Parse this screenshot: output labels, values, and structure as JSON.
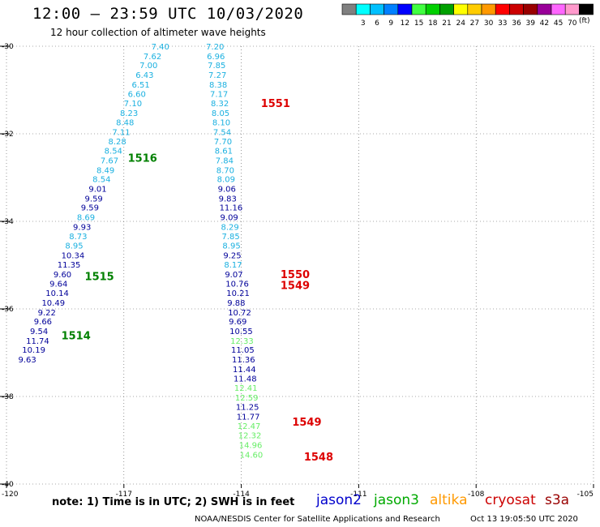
{
  "header": {
    "title": "12:00 – 23:59 UTC 10/03/2020",
    "subtitle": "12 hour collection of altimeter wave heights"
  },
  "scale": {
    "unit": "(ft)",
    "swatches": [
      {
        "label": "",
        "color": "#808080"
      },
      {
        "label": "3",
        "color": "#00ffff"
      },
      {
        "label": "6",
        "color": "#00c0ff"
      },
      {
        "label": "9",
        "color": "#0080ff"
      },
      {
        "label": "12",
        "color": "#0000ff"
      },
      {
        "label": "15",
        "color": "#40ff40"
      },
      {
        "label": "18",
        "color": "#00d000"
      },
      {
        "label": "21",
        "color": "#00a000"
      },
      {
        "label": "24",
        "color": "#ffff00"
      },
      {
        "label": "27",
        "color": "#ffcc00"
      },
      {
        "label": "30",
        "color": "#ff9900"
      },
      {
        "label": "33",
        "color": "#ff0000"
      },
      {
        "label": "36",
        "color": "#cc0000"
      },
      {
        "label": "39",
        "color": "#990000"
      },
      {
        "label": "42",
        "color": "#990099"
      },
      {
        "label": "45",
        "color": "#ff66ff"
      },
      {
        "label": "70",
        "color": "#ff99cc"
      },
      {
        "label": "",
        "color": "#000000"
      }
    ]
  },
  "map": {
    "lon_range": [
      -120,
      -105
    ],
    "lat_range": [
      -40,
      -30
    ],
    "x_ticks": [
      {
        "value": -120,
        "label": "-120"
      },
      {
        "value": -117,
        "label": "-117"
      },
      {
        "value": -114,
        "label": "-114"
      },
      {
        "value": -111,
        "label": "-111"
      },
      {
        "value": -108,
        "label": "-108"
      },
      {
        "value": -105,
        "label": "-105"
      }
    ],
    "y_ticks": [
      {
        "value": -30,
        "label": "-30"
      },
      {
        "value": -32,
        "label": "-32"
      },
      {
        "value": -34,
        "label": "-34"
      },
      {
        "value": -36,
        "label": "-36"
      },
      {
        "value": -38,
        "label": "-38"
      },
      {
        "value": -40,
        "label": "-40"
      }
    ],
    "grid": "dotted"
  },
  "colors": {
    "light": "#1ab0e0",
    "dark": "#000099",
    "pale": "#66ee66",
    "green": "#008000",
    "red": "#dd0000",
    "blue": "#0000cc",
    "lime": "#00aa00",
    "orange": "#ff9900",
    "crimson": "#cc0000",
    "maroon": "#990000"
  },
  "tracks": [
    {
      "name": "jason3-track",
      "labels": [
        {
          "lon": -116.3,
          "lat": -30.0,
          "text": "7.40",
          "c": "light"
        },
        {
          "lon": -116.5,
          "lat": -30.22,
          "text": "7.62",
          "c": "light"
        },
        {
          "lon": -116.6,
          "lat": -30.43,
          "text": "7.00",
          "c": "light"
        },
        {
          "lon": -116.7,
          "lat": -30.65,
          "text": "6.43",
          "c": "light"
        },
        {
          "lon": -116.8,
          "lat": -30.87,
          "text": "6.51",
          "c": "light"
        },
        {
          "lon": -116.9,
          "lat": -31.08,
          "text": "6.60",
          "c": "light"
        },
        {
          "lon": -117.0,
          "lat": -31.3,
          "text": "7.10",
          "c": "light"
        },
        {
          "lon": -117.1,
          "lat": -31.52,
          "text": "8.23",
          "c": "light"
        },
        {
          "lon": -117.2,
          "lat": -31.73,
          "text": "8.48",
          "c": "light"
        },
        {
          "lon": -117.3,
          "lat": -31.95,
          "text": "7.11",
          "c": "light"
        },
        {
          "lon": -117.4,
          "lat": -32.17,
          "text": "8.28",
          "c": "light"
        },
        {
          "lon": -117.5,
          "lat": -32.38,
          "text": "8.54",
          "c": "light"
        },
        {
          "lon": -117.6,
          "lat": -32.6,
          "text": "7.67",
          "c": "light"
        },
        {
          "lon": -117.7,
          "lat": -32.82,
          "text": "8.49",
          "c": "light"
        },
        {
          "lon": -117.8,
          "lat": -33.03,
          "text": "8.54",
          "c": "light"
        },
        {
          "lon": -117.9,
          "lat": -33.25,
          "text": "9.01",
          "c": "dark"
        },
        {
          "lon": -118.0,
          "lat": -33.47,
          "text": "9.59",
          "c": "dark"
        },
        {
          "lon": -118.1,
          "lat": -33.68,
          "text": "9.59",
          "c": "dark"
        },
        {
          "lon": -118.2,
          "lat": -33.9,
          "text": "8.69",
          "c": "light"
        },
        {
          "lon": -118.3,
          "lat": -34.12,
          "text": "9.93",
          "c": "dark"
        },
        {
          "lon": -118.4,
          "lat": -34.33,
          "text": "8.73",
          "c": "light"
        },
        {
          "lon": -118.5,
          "lat": -34.55,
          "text": "8.95",
          "c": "light"
        },
        {
          "lon": -118.6,
          "lat": -34.77,
          "text": "10.34",
          "c": "dark"
        },
        {
          "lon": -118.7,
          "lat": -34.98,
          "text": "11.35",
          "c": "dark"
        },
        {
          "lon": -118.8,
          "lat": -35.2,
          "text": "9.60",
          "c": "dark"
        },
        {
          "lon": -118.9,
          "lat": -35.42,
          "text": "9.64",
          "c": "dark"
        },
        {
          "lon": -119.0,
          "lat": -35.63,
          "text": "10.14",
          "c": "dark"
        },
        {
          "lon": -119.1,
          "lat": -35.85,
          "text": "10.49",
          "c": "dark"
        },
        {
          "lon": -119.2,
          "lat": -36.07,
          "text": "9.22",
          "c": "dark"
        },
        {
          "lon": -119.3,
          "lat": -36.28,
          "text": "9.66",
          "c": "dark"
        },
        {
          "lon": -119.4,
          "lat": -36.5,
          "text": "9.54",
          "c": "dark"
        },
        {
          "lon": -119.5,
          "lat": -36.72,
          "text": "11.74",
          "c": "dark"
        },
        {
          "lon": -119.6,
          "lat": -36.93,
          "text": "10.19",
          "c": "dark"
        },
        {
          "lon": -119.7,
          "lat": -37.15,
          "text": "9.63",
          "c": "dark"
        }
      ]
    },
    {
      "name": "jason2-track",
      "labels": [
        {
          "lon": -114.9,
          "lat": -30.0,
          "text": "7.20",
          "c": "light"
        },
        {
          "lon": -114.88,
          "lat": -30.22,
          "text": "6.96",
          "c": "light"
        },
        {
          "lon": -114.86,
          "lat": -30.43,
          "text": "7.85",
          "c": "light"
        },
        {
          "lon": -114.84,
          "lat": -30.65,
          "text": "7.27",
          "c": "light"
        },
        {
          "lon": -114.82,
          "lat": -30.87,
          "text": "8.38",
          "c": "light"
        },
        {
          "lon": -114.8,
          "lat": -31.08,
          "text": "7.17",
          "c": "light"
        },
        {
          "lon": -114.78,
          "lat": -31.3,
          "text": "8.32",
          "c": "light"
        },
        {
          "lon": -114.76,
          "lat": -31.52,
          "text": "8.05",
          "c": "light"
        },
        {
          "lon": -114.74,
          "lat": -31.73,
          "text": "8.10",
          "c": "light"
        },
        {
          "lon": -114.72,
          "lat": -31.95,
          "text": "7.54",
          "c": "light"
        },
        {
          "lon": -114.7,
          "lat": -32.17,
          "text": "7.70",
          "c": "light"
        },
        {
          "lon": -114.68,
          "lat": -32.38,
          "text": "8.61",
          "c": "light"
        },
        {
          "lon": -114.66,
          "lat": -32.6,
          "text": "7.84",
          "c": "light"
        },
        {
          "lon": -114.64,
          "lat": -32.82,
          "text": "8.70",
          "c": "light"
        },
        {
          "lon": -114.62,
          "lat": -33.03,
          "text": "8.09",
          "c": "light"
        },
        {
          "lon": -114.6,
          "lat": -33.25,
          "text": "9.06",
          "c": "dark"
        },
        {
          "lon": -114.58,
          "lat": -33.47,
          "text": "9.83",
          "c": "dark"
        },
        {
          "lon": -114.56,
          "lat": -33.68,
          "text": "11.16",
          "c": "dark"
        },
        {
          "lon": -114.54,
          "lat": -33.9,
          "text": "9.09",
          "c": "dark"
        },
        {
          "lon": -114.52,
          "lat": -34.12,
          "text": "8.29",
          "c": "light"
        },
        {
          "lon": -114.5,
          "lat": -34.33,
          "text": "7.85",
          "c": "light"
        },
        {
          "lon": -114.48,
          "lat": -34.55,
          "text": "8.95",
          "c": "light"
        },
        {
          "lon": -114.46,
          "lat": -34.77,
          "text": "9.25",
          "c": "dark"
        },
        {
          "lon": -114.44,
          "lat": -34.98,
          "text": "8.17",
          "c": "light"
        },
        {
          "lon": -114.42,
          "lat": -35.2,
          "text": "9.07",
          "c": "dark"
        },
        {
          "lon": -114.4,
          "lat": -35.42,
          "text": "10.76",
          "c": "dark"
        },
        {
          "lon": -114.38,
          "lat": -35.63,
          "text": "10.21",
          "c": "dark"
        },
        {
          "lon": -114.36,
          "lat": -35.85,
          "text": "9.88",
          "c": "dark"
        },
        {
          "lon": -114.34,
          "lat": -36.07,
          "text": "10.72",
          "c": "dark"
        },
        {
          "lon": -114.32,
          "lat": -36.28,
          "text": "9.69",
          "c": "dark"
        },
        {
          "lon": -114.3,
          "lat": -36.5,
          "text": "10.55",
          "c": "dark"
        },
        {
          "lon": -114.28,
          "lat": -36.72,
          "text": "12.33",
          "c": "pale"
        },
        {
          "lon": -114.26,
          "lat": -36.93,
          "text": "11.05",
          "c": "dark"
        },
        {
          "lon": -114.24,
          "lat": -37.15,
          "text": "11.36",
          "c": "dark"
        },
        {
          "lon": -114.22,
          "lat": -37.37,
          "text": "11.44",
          "c": "dark"
        },
        {
          "lon": -114.2,
          "lat": -37.58,
          "text": "11.48",
          "c": "dark"
        },
        {
          "lon": -114.18,
          "lat": -37.8,
          "text": "12.41",
          "c": "pale"
        },
        {
          "lon": -114.16,
          "lat": -38.02,
          "text": "12.59",
          "c": "pale"
        },
        {
          "lon": -114.14,
          "lat": -38.23,
          "text": "11.25",
          "c": "dark"
        },
        {
          "lon": -114.12,
          "lat": -38.45,
          "text": "11.77",
          "c": "dark"
        },
        {
          "lon": -114.1,
          "lat": -38.67,
          "text": "12.47",
          "c": "pale"
        },
        {
          "lon": -114.08,
          "lat": -38.88,
          "text": "12.32",
          "c": "pale"
        },
        {
          "lon": -114.06,
          "lat": -39.1,
          "text": "14.96",
          "c": "pale"
        },
        {
          "lon": -114.04,
          "lat": -39.32,
          "text": "14.60",
          "c": "pale"
        }
      ]
    }
  ],
  "time_labels": [
    {
      "lon": -116.9,
      "lat": -32.55,
      "text": "1516",
      "c": "green"
    },
    {
      "lon": -118.0,
      "lat": -35.25,
      "text": "1515",
      "c": "green"
    },
    {
      "lon": -118.6,
      "lat": -36.6,
      "text": "1514",
      "c": "green"
    },
    {
      "lon": -113.5,
      "lat": -31.3,
      "text": "1551",
      "c": "red"
    },
    {
      "lon": -113.0,
      "lat": -35.2,
      "text": "1550",
      "c": "red"
    },
    {
      "lon": -113.0,
      "lat": -35.45,
      "text": "1549",
      "c": "red"
    },
    {
      "lon": -112.7,
      "lat": -38.57,
      "text": "1549",
      "c": "red"
    },
    {
      "lon": -112.4,
      "lat": -39.37,
      "text": "1548",
      "c": "red"
    }
  ],
  "footer": {
    "note": "note:  1) Time is in UTC;  2) SWH is in feet",
    "missions": [
      {
        "label": "jason2",
        "c": "blue"
      },
      {
        "label": "jason3",
        "c": "lime"
      },
      {
        "label": "altika",
        "c": "orange"
      },
      {
        "label": "cryosat",
        "c": "crimson"
      },
      {
        "label": "s3a",
        "c": "maroon"
      }
    ],
    "credit": "NOAA/NESDIS Center for Satellite Applications and Research",
    "timestamp": "Oct 13 19:05:50 UTC 2020"
  }
}
